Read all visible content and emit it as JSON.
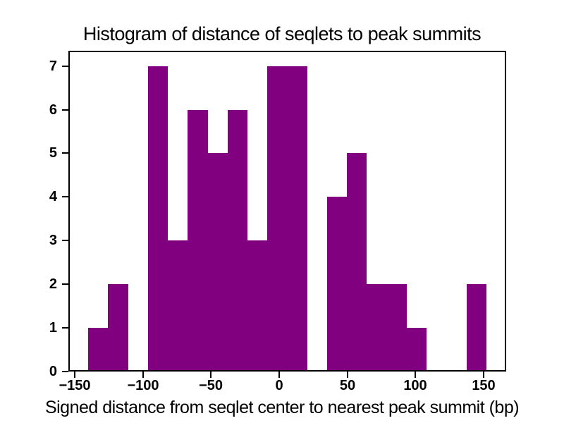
{
  "chart_data": {
    "type": "bar",
    "subtype": "histogram",
    "title": "Histogram of distance of seqlets to peak summits",
    "xlabel": "Signed distance from seqlet center to nearest peak summit (bp)",
    "ylabel": "",
    "bar_color": "#800080",
    "background_color": "#ffffff",
    "axis_color": "#000000",
    "grid": false,
    "legend_position": "none",
    "bin_start": -140,
    "bin_width": 14.6,
    "bin_edges": [
      -140,
      -125.4,
      -110.8,
      -96.2,
      -81.6,
      -67,
      -52.4,
      -37.8,
      -23.2,
      -8.6,
      6,
      20.6,
      35.2,
      49.8,
      64.4,
      79,
      93.6,
      108.2,
      122.8,
      137.4,
      152
    ],
    "counts": [
      1,
      2,
      0,
      7,
      3,
      6,
      5,
      6,
      3,
      7,
      7,
      0,
      4,
      5,
      2,
      2,
      1,
      0,
      0,
      2
    ],
    "xlim": [
      -154.6,
      166.6
    ],
    "ylim": [
      0,
      7.35
    ],
    "x_tick_values": [
      -150,
      -100,
      -50,
      0,
      50,
      100,
      150
    ],
    "x_tick_labels": [
      "−150",
      "−100",
      "−50",
      "0",
      "50",
      "100",
      "150"
    ],
    "y_tick_values": [
      0,
      1,
      2,
      3,
      4,
      5,
      6,
      7
    ],
    "y_tick_labels": [
      "0",
      "1",
      "2",
      "3",
      "4",
      "5",
      "6",
      "7"
    ]
  }
}
